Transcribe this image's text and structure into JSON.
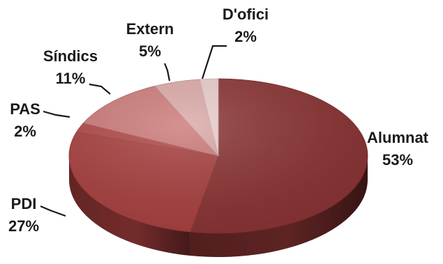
{
  "chart_data": {
    "type": "pie",
    "title": "",
    "three_d": true,
    "slices": [
      {
        "label": "Alumnat",
        "value": 53,
        "value_label": "53%",
        "color": "#8a3333"
      },
      {
        "label": "PDI",
        "value": 27,
        "value_label": "27%",
        "color": "#a8403f"
      },
      {
        "label": "PAS",
        "value": 2,
        "value_label": "2%",
        "color": "#b14846"
      },
      {
        "label": "Síndics",
        "value": 11,
        "value_label": "11%",
        "color": "#cc7a78"
      },
      {
        "label": "Extern",
        "value": 5,
        "value_label": "5%",
        "color": "#dba9a7"
      },
      {
        "label": "D'ofici",
        "value": 2,
        "value_label": "2%",
        "color": "#e9cdcc"
      }
    ]
  }
}
